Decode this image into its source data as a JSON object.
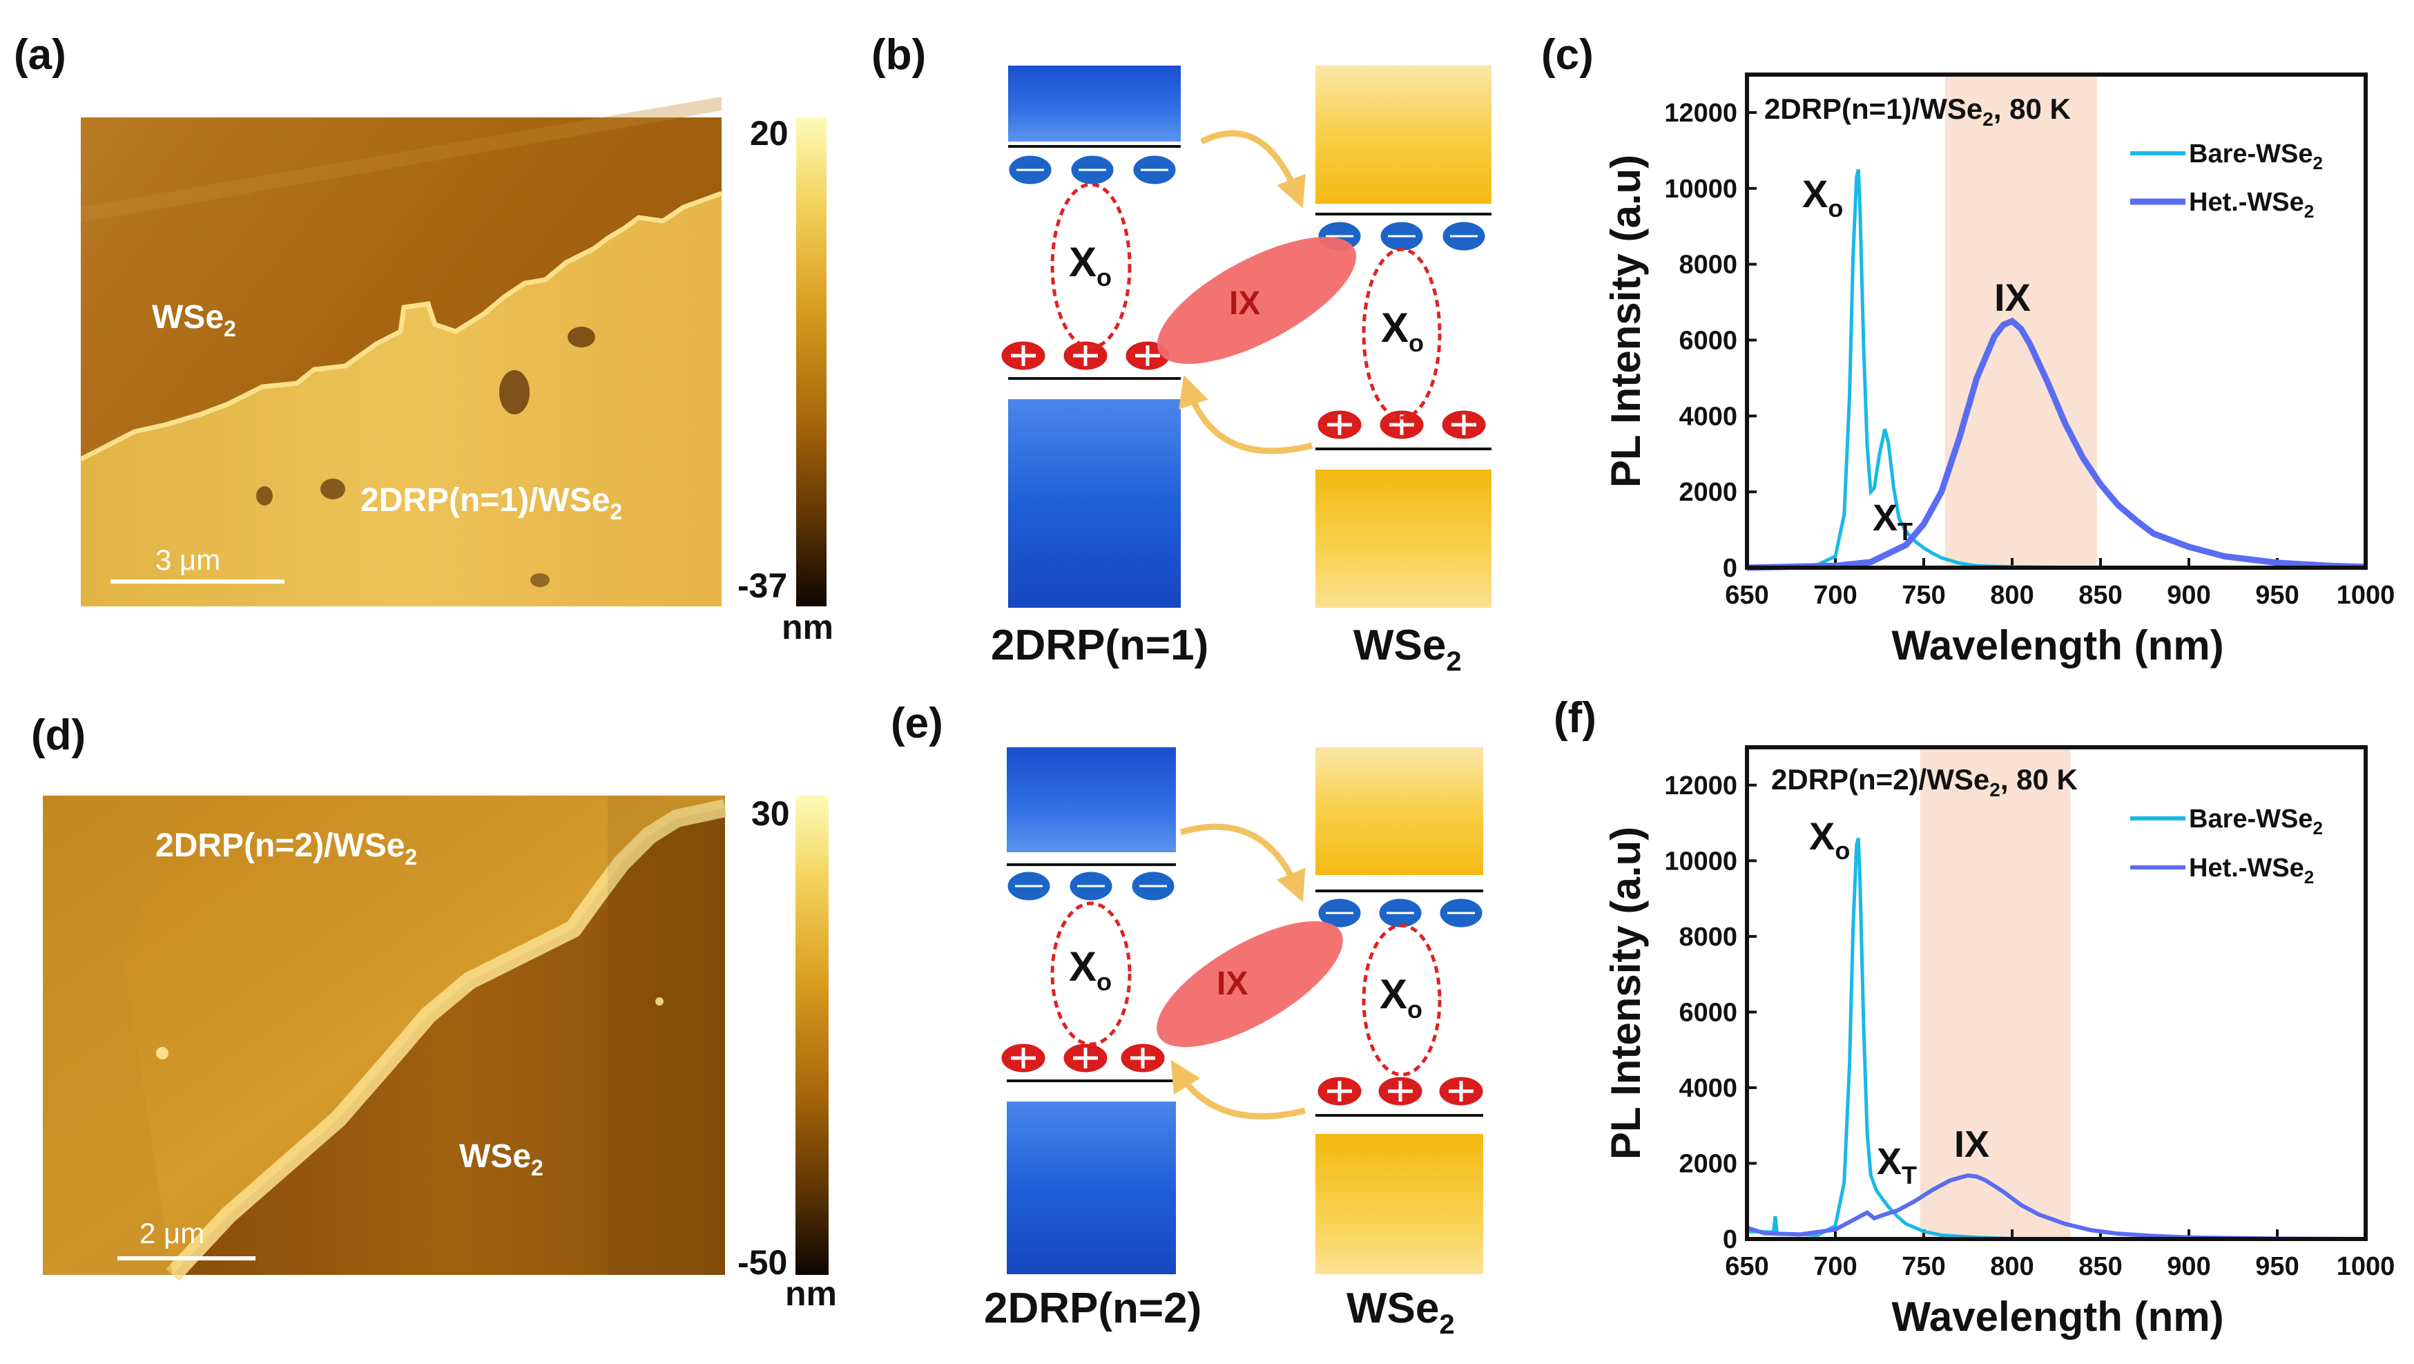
{
  "panels": {
    "a": {
      "label": "(a)",
      "wse2": "WSe",
      "het": "2DRP(n=1)/WSe",
      "sub": "2",
      "scalebar": "3 μm",
      "cbar_max": "20",
      "cbar_min": "-37",
      "cbar_unit": "nm"
    },
    "b": {
      "label": "(b)",
      "left": "2DRP(n=1)",
      "right": "WSe",
      "right_sub": "2",
      "x0": "X",
      "x0_sub": "o",
      "ix": "IX"
    },
    "c": {
      "label": "(c)",
      "title": "2DRP(n=1)/WSe",
      "title_sub": "2",
      "title_suffix": ", 80 K",
      "ylabel": "PL Intensity (a.u)",
      "xlabel": "Wavelength (nm)",
      "peaks": {
        "x0": "X",
        "x0_sub": "o",
        "xt": "X",
        "xt_sub": "T",
        "ix": "IX"
      }
    },
    "d": {
      "label": "(d)",
      "het": "2DRP(n=2)/WSe",
      "wse2": "WSe",
      "sub": "2",
      "scalebar": "2 μm",
      "cbar_max": "30",
      "cbar_min": "-50",
      "cbar_unit": "nm"
    },
    "e": {
      "label": "(e)",
      "left": "2DRP(n=2)",
      "right": "WSe",
      "right_sub": "2",
      "x0": "X",
      "x0_sub": "o",
      "ix": "IX"
    },
    "f": {
      "label": "(f)",
      "title": "2DRP(n=2)/WSe",
      "title_sub": "2",
      "title_suffix": ", 80 K",
      "ylabel": "PL Intensity (a.u)",
      "xlabel": "Wavelength (nm)",
      "peaks": {
        "x0": "X",
        "x0_sub": "o",
        "xt": "X",
        "xt_sub": "T",
        "ix": "IX"
      }
    }
  },
  "colors": {
    "bare": "#19b9e6",
    "het": "#5a6cf2",
    "shade": "#f9e2d3",
    "blue_band": "#1e63d8",
    "yellow_band": "#f7c21c",
    "exciton": "#e02222",
    "ix_ellipse": "#f26b6b",
    "arrow": "#f3c260"
  },
  "chart_data": [
    {
      "type": "line",
      "title": "2DRP(n=1)/WSe2, 80 K",
      "xlabel": "Wavelength (nm)",
      "ylabel": "PL Intensity (a.u)",
      "xlim": [
        650,
        1000
      ],
      "ylim": [
        0,
        13000
      ],
      "xticks": [
        650,
        700,
        750,
        800,
        850,
        900,
        950,
        1000
      ],
      "yticks": [
        0,
        2000,
        4000,
        6000,
        8000,
        10000,
        12000
      ],
      "shaded_range": [
        762,
        848
      ],
      "legend": "top-right",
      "series": [
        {
          "name": "Bare-WSe",
          "name_sub": "2",
          "x": [
            650,
            690,
            700,
            705,
            708,
            710,
            712,
            713,
            714,
            716,
            718,
            720,
            722,
            725,
            728,
            730,
            733,
            736,
            740,
            745,
            750,
            755,
            760,
            770,
            780,
            800,
            850,
            1000
          ],
          "y": [
            0,
            80,
            300,
            1400,
            4500,
            8200,
            10300,
            10500,
            9400,
            5800,
            3200,
            2000,
            2100,
            3000,
            3650,
            3300,
            2100,
            1300,
            950,
            700,
            520,
            380,
            260,
            120,
            50,
            20,
            0,
            0
          ]
        },
        {
          "name": "Het.-WSe",
          "name_sub": "2",
          "x": [
            650,
            700,
            720,
            740,
            750,
            760,
            770,
            780,
            790,
            795,
            800,
            805,
            810,
            820,
            830,
            840,
            850,
            860,
            870,
            880,
            900,
            920,
            950,
            980,
            1000
          ],
          "y": [
            0,
            50,
            150,
            600,
            1150,
            2000,
            3400,
            5000,
            6100,
            6400,
            6500,
            6300,
            5900,
            4900,
            3800,
            2900,
            2200,
            1650,
            1250,
            900,
            550,
            300,
            130,
            50,
            20
          ]
        }
      ],
      "annotations": [
        "Xo",
        "XT",
        "IX"
      ]
    },
    {
      "type": "line",
      "title": "2DRP(n=2)/WSe2, 80 K",
      "xlabel": "Wavelength (nm)",
      "ylabel": "PL Intensity (a.u)",
      "xlim": [
        650,
        1000
      ],
      "ylim": [
        0,
        13000
      ],
      "xticks": [
        650,
        700,
        750,
        800,
        850,
        900,
        950,
        1000
      ],
      "yticks": [
        0,
        2000,
        4000,
        6000,
        8000,
        10000,
        12000
      ],
      "shaded_range": [
        748,
        833
      ],
      "legend": "top-right",
      "series": [
        {
          "name": "Bare-WSe",
          "name_sub": "2",
          "x": [
            650,
            665,
            666,
            667,
            690,
            700,
            705,
            708,
            710,
            712,
            713,
            714,
            716,
            718,
            720,
            723,
            726,
            730,
            735,
            740,
            745,
            750,
            760,
            780,
            800,
            1000
          ],
          "y": [
            200,
            180,
            600,
            150,
            100,
            350,
            1500,
            4600,
            8200,
            10400,
            10600,
            9400,
            5600,
            2800,
            1700,
            1300,
            1100,
            850,
            600,
            400,
            300,
            200,
            100,
            40,
            10,
            0
          ],
          "draw_points": "0"
        },
        {
          "name": "Het.-WSe",
          "name_sub": "2",
          "x": [
            650,
            660,
            680,
            700,
            710,
            718,
            722,
            728,
            735,
            745,
            755,
            765,
            775,
            780,
            785,
            795,
            805,
            815,
            830,
            845,
            860,
            880,
            900,
            950,
            1000
          ],
          "y": [
            300,
            150,
            120,
            250,
            500,
            700,
            550,
            650,
            750,
            1000,
            1300,
            1550,
            1680,
            1650,
            1550,
            1250,
            900,
            650,
            400,
            230,
            140,
            80,
            40,
            10,
            0
          ]
        }
      ],
      "annotations": [
        "Xo",
        "XT",
        "IX"
      ]
    }
  ]
}
